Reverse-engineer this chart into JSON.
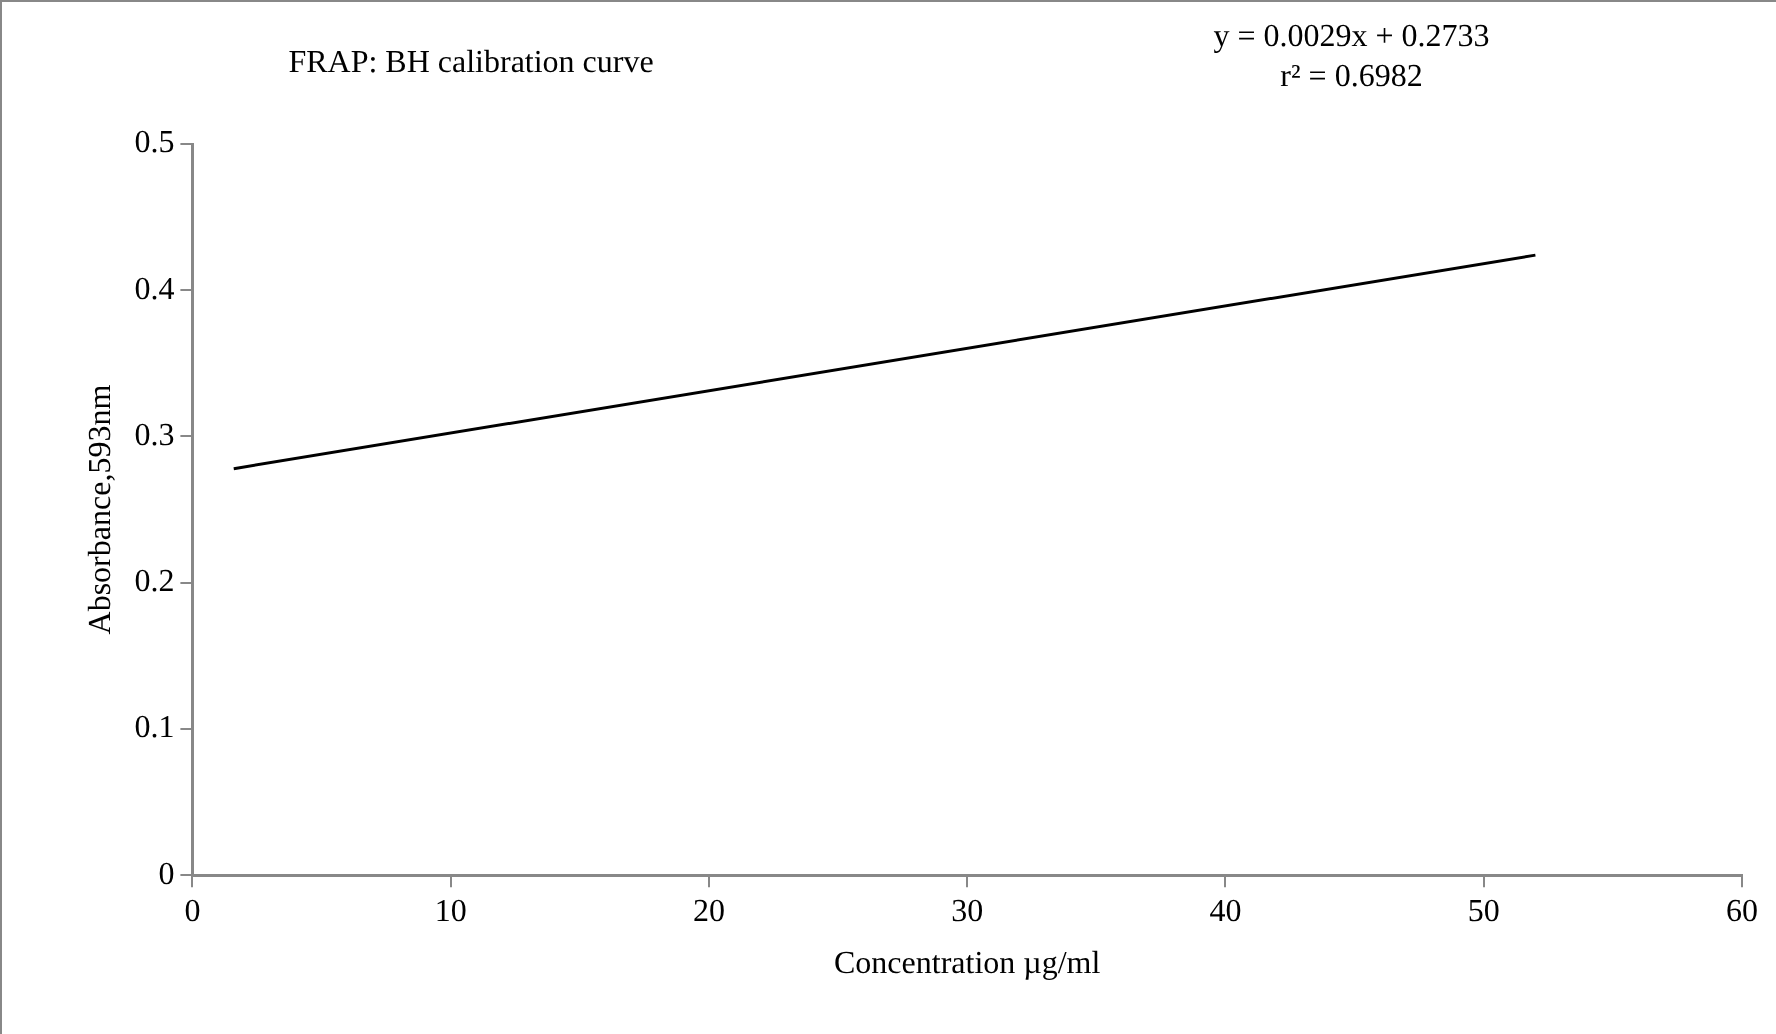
{
  "chart_data": {
    "type": "line",
    "title": "FRAP: BH calibration curve",
    "xlabel": "Concentration µg/ml",
    "ylabel": "Absorbance,593nm",
    "annotations": [
      "y = 0.0029x + 0.2733",
      "r² = 0.6982"
    ],
    "series": [
      {
        "color": "#000000",
        "x": [
          1.6,
          52
        ],
        "values": [
          0.278,
          0.424
        ]
      }
    ],
    "xlim": [
      0,
      60
    ],
    "xticks": [
      0,
      10,
      20,
      30,
      40,
      50,
      60
    ],
    "ylim": [
      0,
      0.5
    ],
    "yticks": [
      0,
      0.1,
      0.2,
      0.3,
      0.4,
      0.5
    ],
    "grid": false,
    "legend": false,
    "marker": "none",
    "line_style": "solid"
  }
}
